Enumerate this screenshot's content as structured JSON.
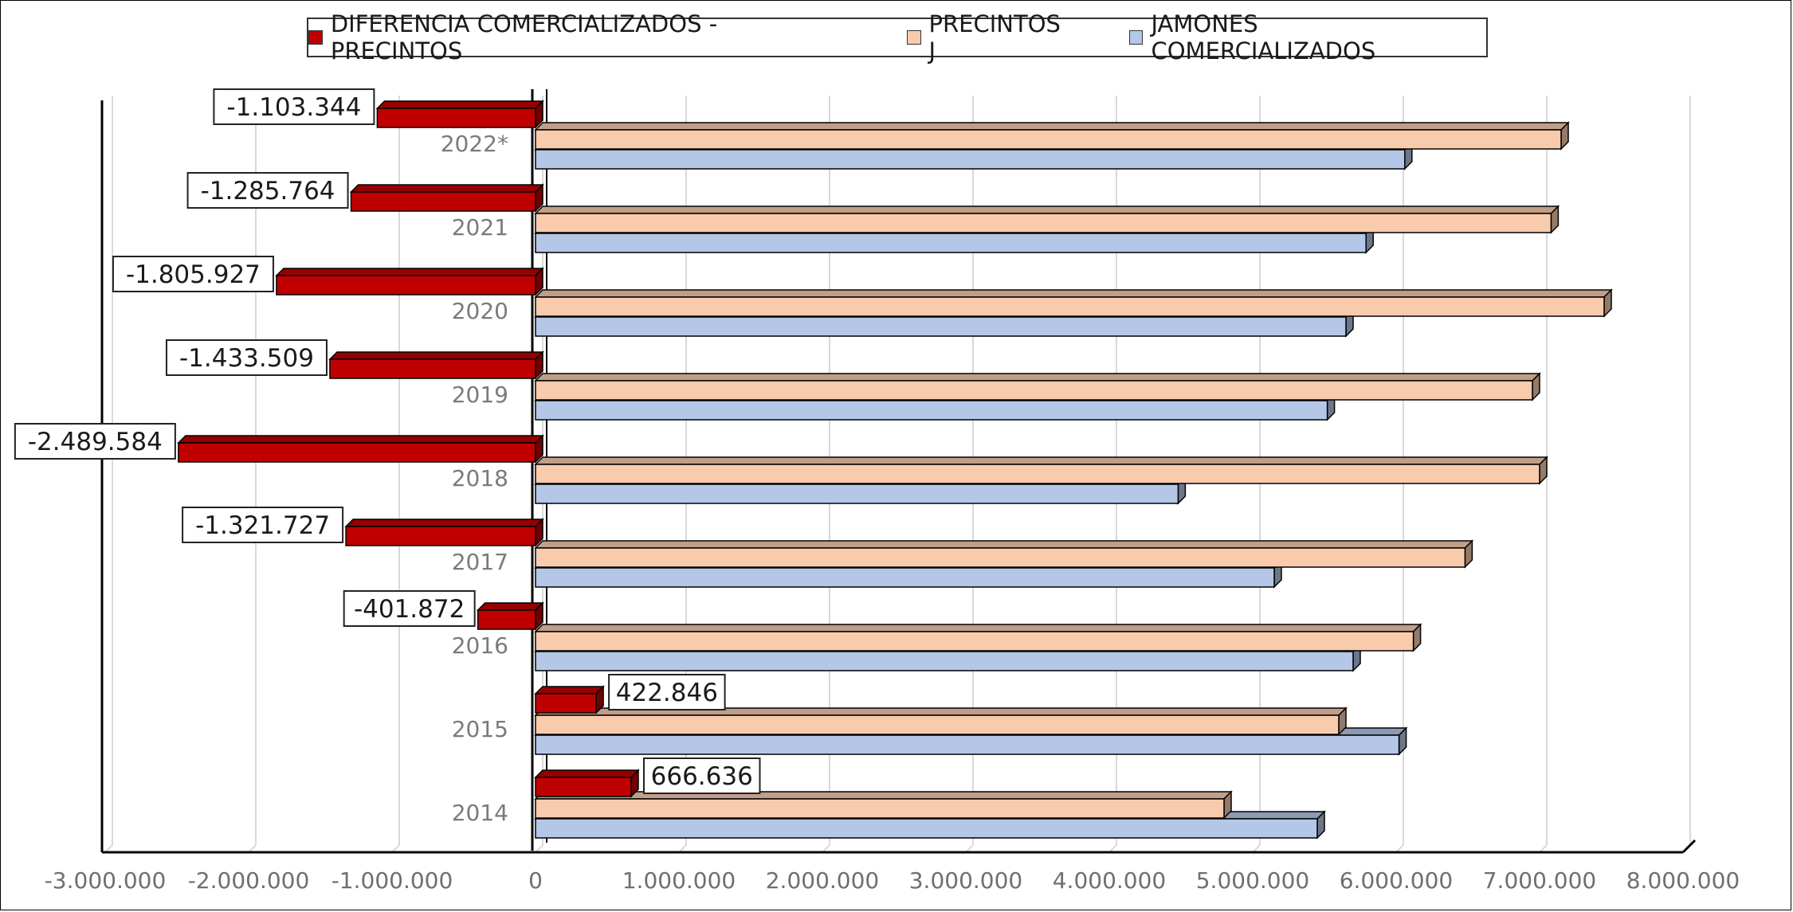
{
  "chart_data": {
    "type": "bar",
    "orientation": "horizontal",
    "style": "3d",
    "categories": [
      "2014",
      "2015",
      "2016",
      "2017",
      "2018",
      "2019",
      "2020",
      "2021",
      "2022*"
    ],
    "series": [
      {
        "name": "DIFERENCIA COMERCIALIZADOS - PRECINTOS",
        "color": "#c00000",
        "values": [
          666636,
          422846,
          -401872,
          -1321727,
          -2489584,
          -1433509,
          -1805927,
          -1285764,
          -1103344
        ],
        "labels": [
          "666.636",
          "422.846",
          "-401.872",
          "-1.321.727",
          "-2.489.584",
          "-1.433.509",
          "-1.805.927",
          "-1.285.764",
          "-1.103.344"
        ]
      },
      {
        "name": "PRECINTOS J",
        "color": "#f8cbad",
        "values": [
          4800000,
          5600000,
          6120000,
          6480000,
          7000000,
          6950000,
          7450000,
          7080000,
          7150000
        ]
      },
      {
        "name": "JAMONES COMERCIALIZADOS",
        "color": "#b4c7e7",
        "values": [
          5450000,
          6020000,
          5700000,
          5150000,
          4480000,
          5520000,
          5650000,
          5790000,
          6060000
        ]
      }
    ],
    "xlim": [
      -3000000,
      8000000
    ],
    "xticks": [
      -3000000,
      -2000000,
      -1000000,
      0,
      1000000,
      2000000,
      3000000,
      4000000,
      5000000,
      6000000,
      7000000,
      8000000
    ],
    "xtick_labels": [
      "-3.000.000",
      "-2.000.000",
      "-1.000.000",
      "0",
      "1.000.000",
      "2.000.000",
      "3.000.000",
      "4.000.000",
      "5.000.000",
      "6.000.000",
      "7.000.000",
      "8.000.000"
    ],
    "grid": true,
    "legend_position": "top"
  }
}
